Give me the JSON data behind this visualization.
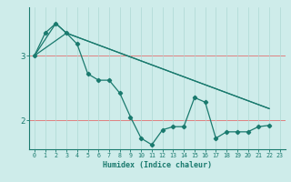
{
  "xlabel": "Humidex (Indice chaleur)",
  "background_color": "#ceecea",
  "line_color": "#1a7a6e",
  "grid_color": "#aed8d4",
  "red_line_color": "#e08080",
  "xlim": [
    -0.5,
    23.5
  ],
  "ylim": [
    1.55,
    3.75
  ],
  "yticks": [
    2,
    3
  ],
  "xticks": [
    0,
    1,
    2,
    3,
    4,
    5,
    6,
    7,
    8,
    9,
    10,
    11,
    12,
    13,
    14,
    15,
    16,
    17,
    18,
    19,
    20,
    21,
    22,
    23
  ],
  "series1_x": [
    0,
    1,
    2,
    3,
    4,
    5,
    6,
    7,
    8,
    9,
    10,
    11,
    12,
    13,
    14,
    15,
    16,
    17,
    18,
    19,
    20,
    21,
    22
  ],
  "series1_y": [
    3.0,
    3.35,
    3.5,
    3.35,
    3.18,
    2.72,
    2.62,
    2.62,
    2.42,
    2.05,
    1.72,
    1.62,
    1.85,
    1.9,
    1.9,
    2.35,
    2.28,
    1.72,
    1.82,
    1.82,
    1.82,
    1.9,
    1.92
  ],
  "series2_x": [
    0,
    2,
    3,
    22
  ],
  "series2_y": [
    3.0,
    3.5,
    3.35,
    2.18
  ],
  "series3_x": [
    0,
    3,
    22
  ],
  "series3_y": [
    3.0,
    3.35,
    2.18
  ]
}
